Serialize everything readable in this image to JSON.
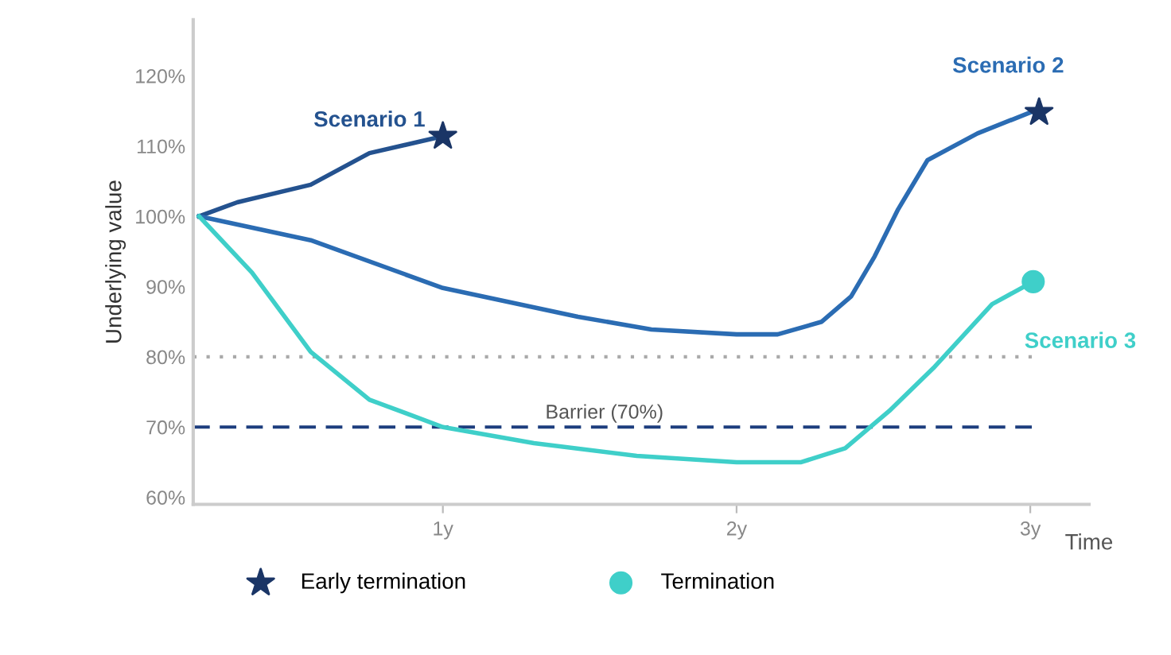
{
  "chart_data": {
    "type": "line",
    "ylabel": "Underlying value",
    "xlabel": "Time",
    "xlim": [
      0.15,
      3.2
    ],
    "ylim": [
      59,
      128
    ],
    "xticks": [
      {
        "value": 1,
        "label": "1y"
      },
      {
        "value": 2,
        "label": "2y"
      },
      {
        "value": 3,
        "label": "3y"
      }
    ],
    "yticks": [
      {
        "value": 60,
        "label": "60%"
      },
      {
        "value": 70,
        "label": "70%"
      },
      {
        "value": 80,
        "label": "80%"
      },
      {
        "value": 90,
        "label": "90%"
      },
      {
        "value": 100,
        "label": "100%"
      },
      {
        "value": 110,
        "label": "110%"
      },
      {
        "value": 120,
        "label": "120%"
      }
    ],
    "grid": false,
    "legend": "bottom",
    "marker": "none",
    "line_style": "solid",
    "series": [
      {
        "name": "Scenario 1",
        "color": "#24528f",
        "x": [
          0.17,
          0.3,
          0.55,
          0.75,
          1.0
        ],
        "values": [
          100,
          102,
          104.5,
          109,
          111.4
        ]
      },
      {
        "name": "Scenario 2",
        "color": "#2b6cb3",
        "x": [
          0.17,
          0.55,
          1.0,
          1.46,
          1.71,
          2.0,
          2.14,
          2.29,
          2.39,
          2.47,
          2.55,
          2.65,
          2.82,
          3.0
        ],
        "values": [
          100,
          96.6,
          89.8,
          85.7,
          83.9,
          83.2,
          83.2,
          85,
          88.6,
          94.3,
          101,
          108,
          111.8,
          114.8
        ]
      },
      {
        "name": "Scenario 3",
        "color": "#3fcfc9",
        "x": [
          0.17,
          0.35,
          0.55,
          0.75,
          1.0,
          1.31,
          1.66,
          2.0,
          2.22,
          2.37,
          2.52,
          2.67,
          2.87,
          3.01
        ],
        "values": [
          100,
          92,
          80.7,
          73.9,
          70,
          67.7,
          65.9,
          65,
          65,
          67,
          72.3,
          78.4,
          87.5,
          90.7
        ]
      },
      {
        "name": "Early termination",
        "type": "scatter",
        "marker": "star",
        "color": "#1a3566",
        "x": [
          1.0,
          3.03
        ],
        "values": [
          111.4,
          114.8
        ]
      },
      {
        "name": "Termination",
        "type": "scatter",
        "marker": "circle",
        "color": "#3fcfc9",
        "x": [
          3.01
        ],
        "values": [
          90.7
        ]
      }
    ],
    "ref_lines": [
      {
        "axis": "y",
        "value": 80,
        "label": null,
        "color": "#aaaaaa",
        "line_style": "dotted"
      },
      {
        "axis": "y",
        "value": 70,
        "label": "Barrier (70%)",
        "color": "#1d3e7e",
        "line_style": "dashed"
      }
    ]
  }
}
